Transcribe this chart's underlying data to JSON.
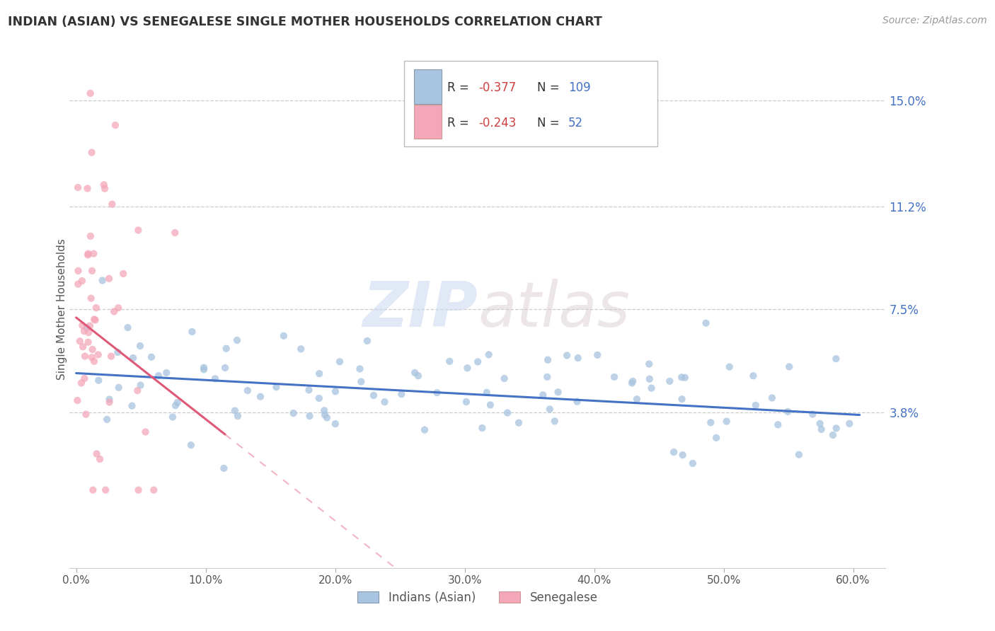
{
  "title": "INDIAN (ASIAN) VS SENEGALESE SINGLE MOTHER HOUSEHOLDS CORRELATION CHART",
  "source_text": "Source: ZipAtlas.com",
  "ylabel": "Single Mother Households",
  "xlabel_ticks": [
    "0.0%",
    "10.0%",
    "20.0%",
    "30.0%",
    "40.0%",
    "50.0%",
    "60.0%"
  ],
  "xlabel_tick_vals": [
    0.0,
    0.1,
    0.2,
    0.3,
    0.4,
    0.5,
    0.6
  ],
  "ytick_labels": [
    "3.8%",
    "7.5%",
    "11.2%",
    "15.0%"
  ],
  "ytick_vals": [
    0.038,
    0.075,
    0.112,
    0.15
  ],
  "xlim": [
    -0.005,
    0.625
  ],
  "ylim": [
    -0.018,
    0.168
  ],
  "indian_color": "#a8c4e0",
  "senegalese_color": "#f4a7b9",
  "indian_line_color": "#4472c4",
  "senegalese_line_color": "#e05878",
  "indian_R": -0.377,
  "indian_N": 109,
  "senegalese_R": -0.243,
  "senegalese_N": 52,
  "legend_label_indian": "Indians (Asian)",
  "legend_label_senegalese": "Senegalese",
  "watermark_zip": "ZIP",
  "watermark_atlas": "atlas",
  "grid_color": "#cccccc",
  "background_color": "#ffffff",
  "indian_line_y_start": 0.052,
  "indian_line_y_end": 0.037,
  "senegalese_line_x_start": 0.0,
  "senegalese_line_y_start": 0.072,
  "senegalese_line_x_end": 0.115,
  "senegalese_line_y_end": 0.03
}
